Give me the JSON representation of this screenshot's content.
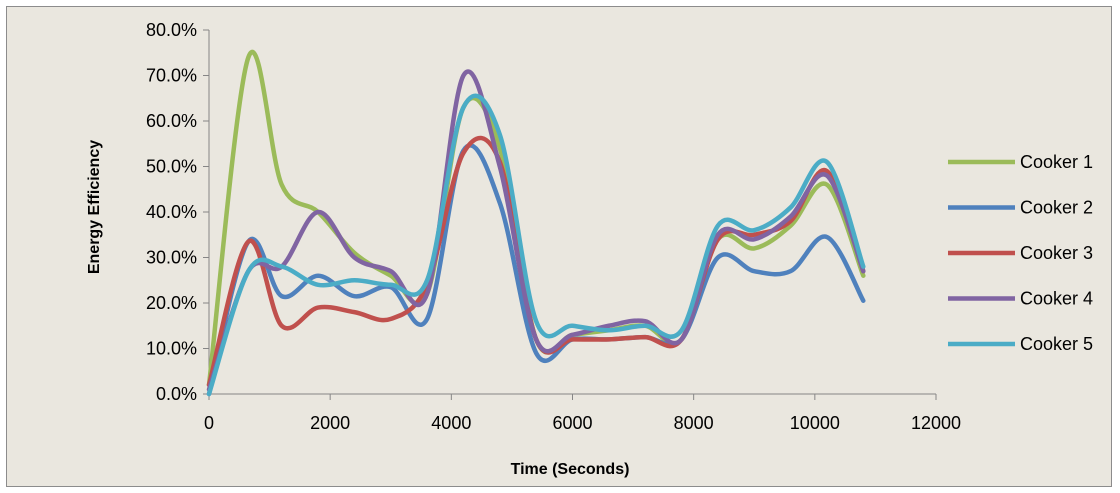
{
  "chart_data": {
    "type": "line",
    "title": "",
    "xlabel": "Time (Seconds)",
    "ylabel": "Energy Efficiency",
    "xlim": [
      0,
      12000
    ],
    "ylim": [
      0,
      0.8
    ],
    "x_ticks": [
      0,
      2000,
      4000,
      6000,
      8000,
      10000,
      12000
    ],
    "x_tick_labels": [
      "0",
      "2000",
      "4000",
      "6000",
      "8000",
      "10000",
      "12000"
    ],
    "y_ticks": [
      0,
      0.1,
      0.2,
      0.3,
      0.4,
      0.5,
      0.6,
      0.7,
      0.8
    ],
    "y_tick_labels": [
      "0.0%",
      "10.0%",
      "20.0%",
      "30.0%",
      "40.0%",
      "50.0%",
      "60.0%",
      "70.0%",
      "80.0%"
    ],
    "grid": false,
    "smooth": true,
    "legend_position": "right",
    "x": [
      0,
      650,
      1200,
      1800,
      2400,
      3000,
      3600,
      4200,
      4800,
      5400,
      6000,
      6600,
      7200,
      7800,
      8400,
      9000,
      9600,
      10200,
      10800
    ],
    "series": [
      {
        "name": "Cooker 1",
        "color": "#9bbb59",
        "values": [
          0.02,
          0.74,
          0.46,
          0.4,
          0.31,
          0.26,
          0.22,
          0.63,
          0.54,
          0.12,
          0.13,
          0.14,
          0.15,
          0.12,
          0.34,
          0.32,
          0.37,
          0.46,
          0.26
        ]
      },
      {
        "name": "Cooker 2",
        "color": "#4f81bd",
        "values": [
          0.0,
          0.335,
          0.215,
          0.26,
          0.215,
          0.235,
          0.165,
          0.535,
          0.42,
          0.09,
          0.12,
          0.12,
          0.125,
          0.12,
          0.3,
          0.27,
          0.27,
          0.345,
          0.205
        ]
      },
      {
        "name": "Cooker 3",
        "color": "#c0504d",
        "values": [
          0.02,
          0.335,
          0.15,
          0.19,
          0.18,
          0.165,
          0.24,
          0.53,
          0.51,
          0.12,
          0.12,
          0.12,
          0.125,
          0.12,
          0.34,
          0.35,
          0.38,
          0.49,
          0.27
        ]
      },
      {
        "name": "Cooker 4",
        "color": "#8064a2",
        "values": [
          0.01,
          0.27,
          0.28,
          0.4,
          0.3,
          0.27,
          0.22,
          0.7,
          0.5,
          0.12,
          0.13,
          0.15,
          0.16,
          0.12,
          0.35,
          0.34,
          0.39,
          0.48,
          0.27
        ]
      },
      {
        "name": "Cooker 5",
        "color": "#4bacc6",
        "values": [
          0.0,
          0.27,
          0.28,
          0.24,
          0.25,
          0.24,
          0.25,
          0.63,
          0.57,
          0.16,
          0.15,
          0.14,
          0.15,
          0.14,
          0.37,
          0.36,
          0.41,
          0.51,
          0.28
        ]
      }
    ]
  }
}
